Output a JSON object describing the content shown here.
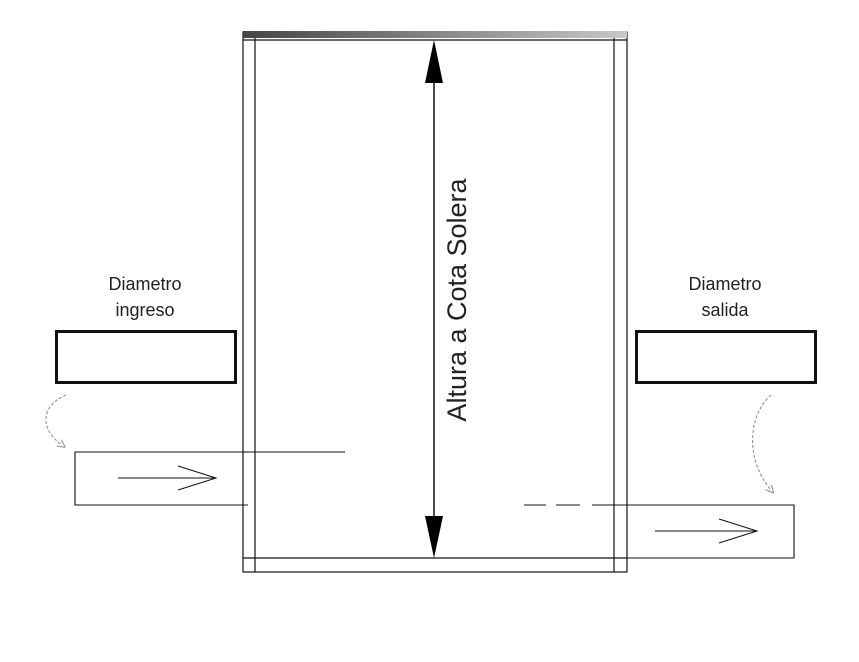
{
  "labels": {
    "inlet_diameter_line1": "Diametro",
    "inlet_diameter_line2": "ingreso",
    "outlet_diameter_line1": "Diametro",
    "outlet_diameter_line2": "salida",
    "height": "Altura a Cota Solera"
  },
  "inputs": {
    "inlet_diameter": "",
    "outlet_diameter": ""
  },
  "colors": {
    "line": "#111111",
    "top_edge_dark": "#555555",
    "top_edge_light": "#cccccc",
    "curved_arrow": "#888888"
  }
}
